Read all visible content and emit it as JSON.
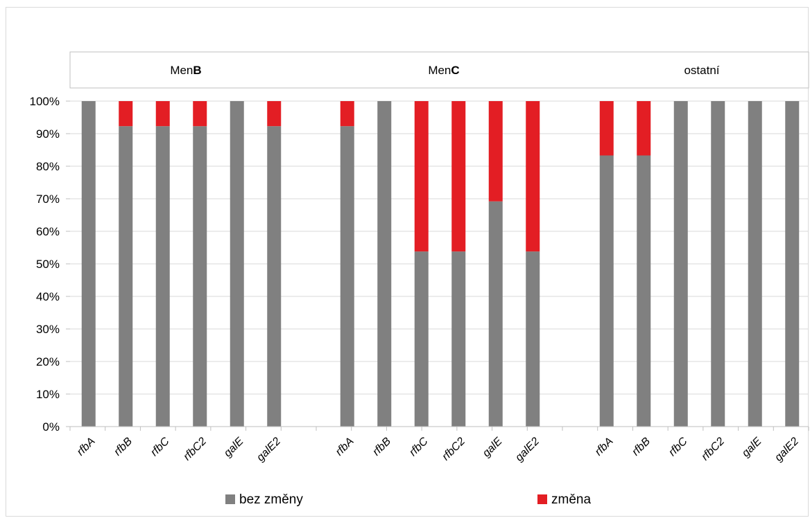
{
  "chart_data": {
    "type": "bar",
    "stacked": true,
    "percent_axis": true,
    "groups": [
      {
        "label_parts": [
          "Men",
          "B"
        ],
        "categories": [
          "rfbA",
          "rfbB",
          "rfbC",
          "rfbC2",
          "galE",
          "galE2"
        ]
      },
      {
        "label_parts": [
          "Men",
          "C"
        ],
        "categories": [
          "rfbA",
          "rfbB",
          "rfbC",
          "rfbC2",
          "galE",
          "galE2"
        ]
      },
      {
        "label_parts": [
          "ostatní",
          ""
        ],
        "categories": [
          "rfbA",
          "rfbB",
          "rfbC",
          "rfbC2",
          "galE",
          "galE2"
        ]
      }
    ],
    "series": [
      {
        "name": "bez změny",
        "color": "#808080",
        "values": [
          100,
          92.3,
          92.3,
          92.3,
          100,
          92.3,
          92.3,
          100,
          53.8,
          53.8,
          69.2,
          53.8,
          83.3,
          83.3,
          100,
          100,
          100,
          100
        ]
      },
      {
        "name": "změna",
        "color": "#e31e24",
        "values": [
          0,
          7.7,
          7.7,
          7.7,
          0,
          7.7,
          7.7,
          0,
          46.2,
          46.2,
          30.8,
          46.2,
          16.7,
          16.7,
          0,
          0,
          0,
          0
        ]
      }
    ],
    "y_ticks": [
      "0%",
      "10%",
      "20%",
      "30%",
      "40%",
      "50%",
      "60%",
      "70%",
      "80%",
      "90%",
      "100%"
    ],
    "ylim": [
      0,
      100
    ],
    "grid": true,
    "legend": "bottom"
  }
}
